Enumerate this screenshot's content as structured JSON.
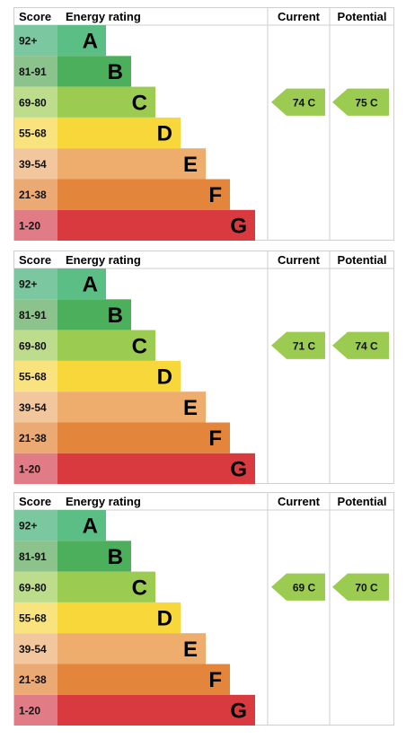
{
  "chart_data": [
    {
      "type": "bar",
      "headers": {
        "score": "Score",
        "rating": "Energy rating",
        "current": "Current",
        "potential": "Potential"
      },
      "bands": [
        {
          "score": "92+",
          "letter": "A",
          "color": "#5bbf85"
        },
        {
          "score": "81-91",
          "letter": "B",
          "color": "#4caf5b"
        },
        {
          "score": "69-80",
          "letter": "C",
          "color": "#9bcb50"
        },
        {
          "score": "55-68",
          "letter": "D",
          "color": "#f7d73a"
        },
        {
          "score": "39-54",
          "letter": "E",
          "color": "#eeac6d"
        },
        {
          "score": "21-38",
          "letter": "F",
          "color": "#e3853a"
        },
        {
          "score": "1-20",
          "letter": "G",
          "color": "#d83a3f"
        }
      ],
      "current": {
        "value": 74,
        "letter": "C",
        "label": "74  C"
      },
      "potential": {
        "value": 75,
        "letter": "C",
        "label": "75  C"
      }
    },
    {
      "type": "bar",
      "headers": {
        "score": "Score",
        "rating": "Energy rating",
        "current": "Current",
        "potential": "Potential"
      },
      "bands": [
        {
          "score": "92+",
          "letter": "A",
          "color": "#5bbf85"
        },
        {
          "score": "81-91",
          "letter": "B",
          "color": "#4caf5b"
        },
        {
          "score": "69-80",
          "letter": "C",
          "color": "#9bcb50"
        },
        {
          "score": "55-68",
          "letter": "D",
          "color": "#f7d73a"
        },
        {
          "score": "39-54",
          "letter": "E",
          "color": "#eeac6d"
        },
        {
          "score": "21-38",
          "letter": "F",
          "color": "#e3853a"
        },
        {
          "score": "1-20",
          "letter": "G",
          "color": "#d83a3f"
        }
      ],
      "current": {
        "value": 71,
        "letter": "C",
        "label": "71  C"
      },
      "potential": {
        "value": 74,
        "letter": "C",
        "label": "74  C"
      }
    },
    {
      "type": "bar",
      "headers": {
        "score": "Score",
        "rating": "Energy rating",
        "current": "Current",
        "potential": "Potential"
      },
      "bands": [
        {
          "score": "92+",
          "letter": "A",
          "color": "#5bbf85"
        },
        {
          "score": "81-91",
          "letter": "B",
          "color": "#4caf5b"
        },
        {
          "score": "69-80",
          "letter": "C",
          "color": "#9bcb50"
        },
        {
          "score": "55-68",
          "letter": "D",
          "color": "#f7d73a"
        },
        {
          "score": "39-54",
          "letter": "E",
          "color": "#eeac6d"
        },
        {
          "score": "21-38",
          "letter": "F",
          "color": "#e3853a"
        },
        {
          "score": "1-20",
          "letter": "G",
          "color": "#d83a3f"
        }
      ],
      "current": {
        "value": 69,
        "letter": "C",
        "label": "69  C"
      },
      "potential": {
        "value": 70,
        "letter": "C",
        "label": "70  C"
      }
    }
  ]
}
